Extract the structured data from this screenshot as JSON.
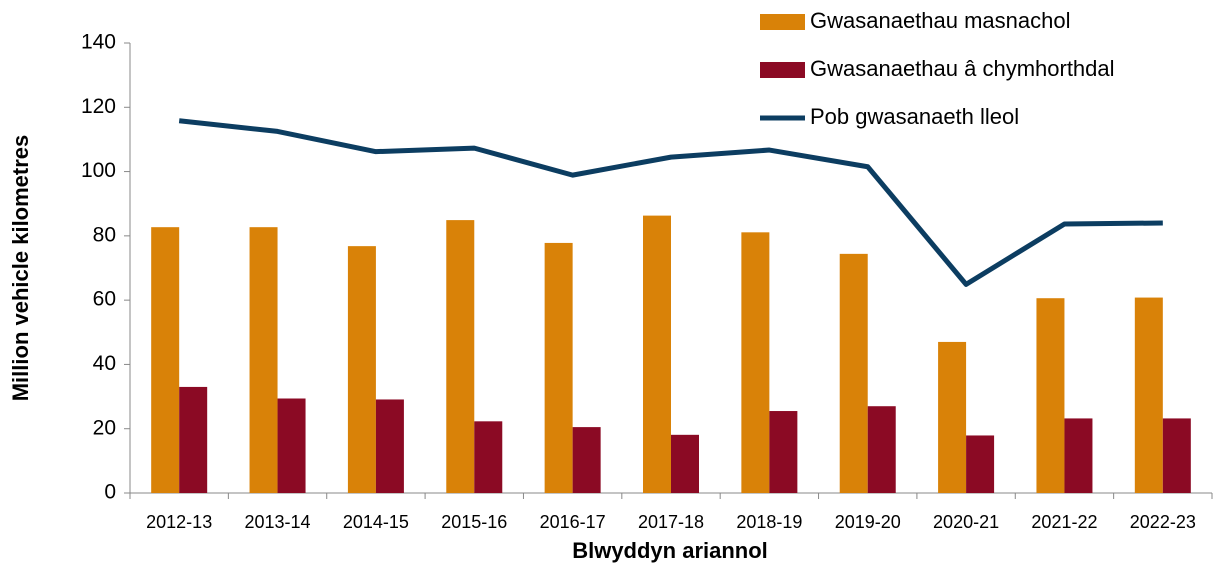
{
  "chart_data": {
    "type": "bar_line",
    "categories": [
      "2012-13",
      "2013-14",
      "2014-15",
      "2015-16",
      "2016-17",
      "2017-18",
      "2018-19",
      "2019-20",
      "2020-21",
      "2021-22",
      "2022-23"
    ],
    "series": [
      {
        "name": "Gwasanaethau masnachol",
        "type": "bar",
        "color": "#d98208",
        "values": [
          82.7,
          82.7,
          76.8,
          84.9,
          77.8,
          86.3,
          81.1,
          74.4,
          47.0,
          60.6,
          60.8
        ]
      },
      {
        "name": "Gwasanaethau â chymhorthdal",
        "type": "bar",
        "color": "#8b0a24",
        "values": [
          33.0,
          29.4,
          29.1,
          22.3,
          20.5,
          18.1,
          25.5,
          27.0,
          17.9,
          23.2,
          23.2
        ]
      },
      {
        "name": "Pob gwasanaeth lleol",
        "type": "line",
        "color": "#0c3d61",
        "values": [
          115.8,
          112.5,
          106.2,
          107.3,
          98.9,
          104.5,
          106.7,
          101.5,
          64.9,
          83.7,
          84.0
        ]
      }
    ],
    "xlabel": "Blwyddyn ariannol",
    "ylabel": "Million vehicle kilometres",
    "ylim": [
      0,
      140
    ],
    "yticks": [
      0,
      20,
      40,
      60,
      80,
      100,
      120,
      140
    ],
    "legend": "top-right"
  }
}
